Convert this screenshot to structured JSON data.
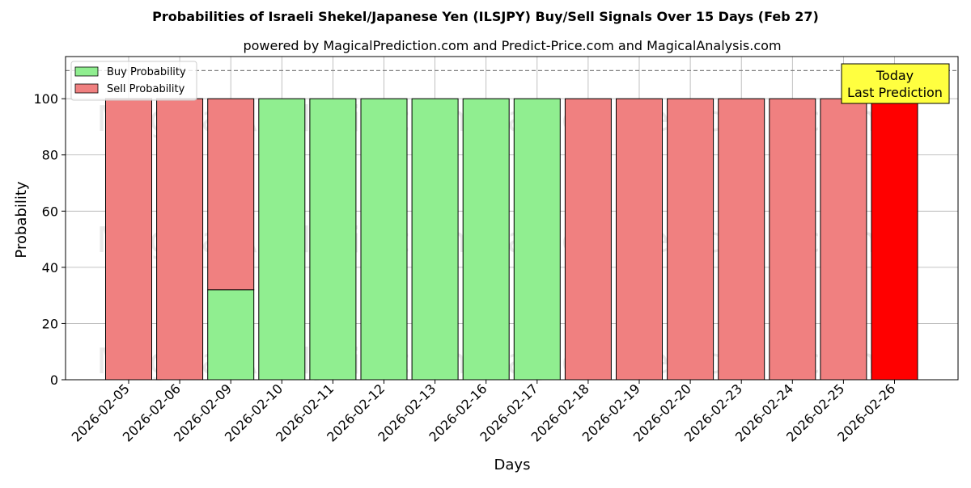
{
  "chart_data": {
    "type": "bar",
    "stacked": true,
    "title": "Probabilities of Israeli Shekel/Japanese Yen (ILSJPY) Buy/Sell Signals Over 15 Days (Feb 27)",
    "subtitle": "powered by MagicalPrediction.com and Predict-Price.com and MagicalAnalysis.com",
    "xlabel": "Days",
    "ylabel": "Probability",
    "ylim": [
      0,
      115
    ],
    "yticks": [
      0,
      20,
      40,
      60,
      80,
      100
    ],
    "grid": true,
    "legend_position": "top-left",
    "reference_line": 110,
    "categories": [
      "2026-02-05",
      "2026-02-06",
      "2026-02-09",
      "2026-02-10",
      "2026-02-11",
      "2026-02-12",
      "2026-02-13",
      "2026-02-16",
      "2026-02-17",
      "2026-02-18",
      "2026-02-19",
      "2026-02-20",
      "2026-02-23",
      "2026-02-24",
      "2026-02-25",
      "2026-02-26"
    ],
    "series": [
      {
        "name": "Buy Probability",
        "color": "#90ee90",
        "values": [
          0,
          0,
          32,
          100,
          100,
          100,
          100,
          100,
          100,
          0,
          0,
          0,
          0,
          0,
          0,
          0
        ]
      },
      {
        "name": "Sell Probability",
        "color": "#f08080",
        "values": [
          100,
          100,
          68,
          0,
          0,
          0,
          0,
          0,
          0,
          100,
          100,
          100,
          100,
          100,
          100,
          100
        ]
      }
    ],
    "highlight": {
      "index": 15,
      "color": "#ff0000"
    },
    "annotation": {
      "line1": "Today",
      "line2": "Last Prediction",
      "color": "#ffff40"
    },
    "watermarks": [
      "MagicalAnalysis.com",
      "MagicalPrediction.com"
    ]
  }
}
